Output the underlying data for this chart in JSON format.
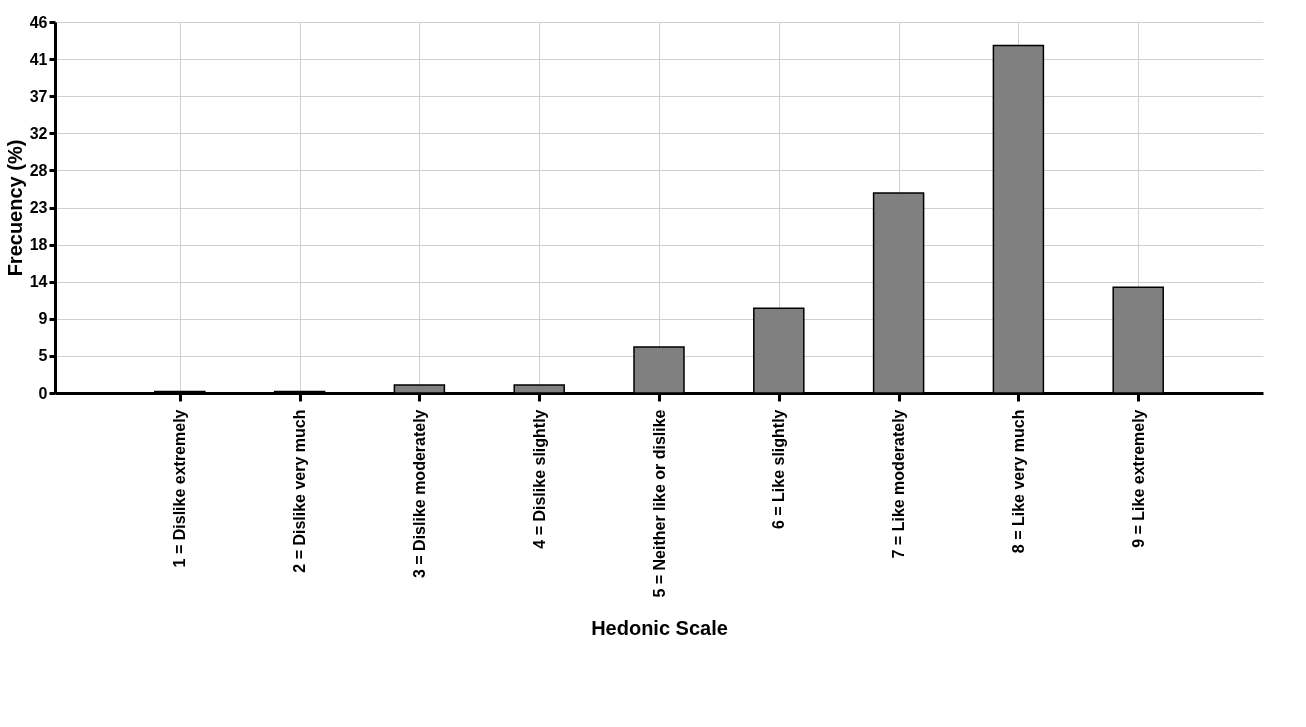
{
  "chart_data": {
    "type": "bar",
    "xlabel": "Hedonic Scale",
    "ylabel": "Frecuency (%)",
    "categories": [
      "1 = Dislike extremely",
      "2 = Dislike very much",
      "3 = Dislike moderately",
      "4 = Dislike slightly",
      "5 = Neither like or dislike",
      "6 = Like slightly",
      "7 = Like moderately",
      "8 = Like very much",
      "9 = Like extremely"
    ],
    "values": [
      0.2,
      0.2,
      1.0,
      1.0,
      5.7,
      10.5,
      24.8,
      43.1,
      13.1
    ],
    "color": "#808080",
    "ylim": [
      0,
      46
    ],
    "yticks": [
      0,
      {
        "value": 4.6,
        "label": "5"
      },
      {
        "value": 9.2,
        "label": "9"
      },
      {
        "value": 13.8,
        "label": "14"
      },
      {
        "value": 18.4,
        "label": "18"
      },
      23,
      {
        "value": 27.6,
        "label": "28"
      },
      {
        "value": 32.2,
        "label": "32"
      },
      {
        "value": 36.8,
        "label": "37"
      },
      {
        "value": 41.4,
        "label": "41"
      },
      46
    ],
    "grid": true
  }
}
